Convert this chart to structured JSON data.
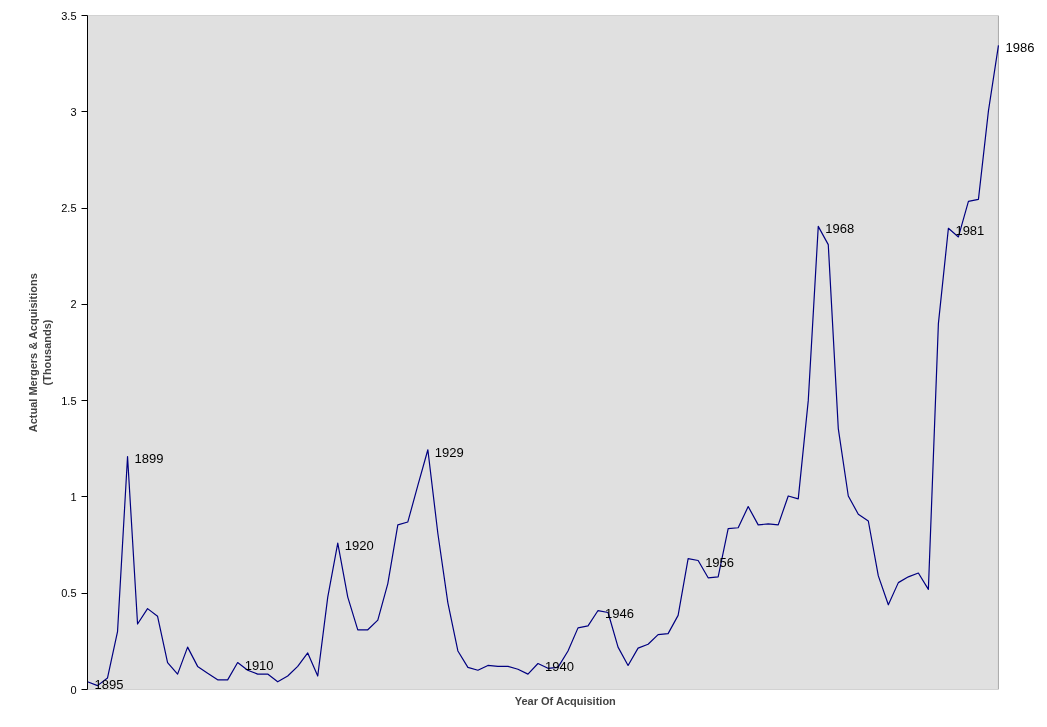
{
  "chart_data": {
    "type": "line",
    "xlabel": "Year Of Acquisition",
    "ylabel": "Actual Mergers & Acquisitions\n(Thousands)",
    "categories": [
      null,
      null,
      null,
      null,
      null,
      null,
      null,
      null,
      null,
      null,
      null,
      null,
      null,
      null,
      null,
      null,
      null,
      null,
      null,
      null,
      null,
      null,
      null,
      null,
      null,
      null,
      null,
      null,
      null,
      null,
      null,
      null,
      null,
      null,
      null,
      null,
      null,
      null,
      null,
      null,
      null,
      null,
      null,
      null,
      null,
      null,
      null,
      null,
      null,
      null,
      null,
      null,
      null,
      null,
      null,
      null,
      null,
      null,
      null,
      null,
      null,
      null,
      null,
      null,
      null,
      null,
      null,
      null,
      null,
      null,
      null,
      null,
      null,
      null,
      null,
      null,
      null,
      null,
      null,
      null,
      null,
      null,
      null,
      null,
      null,
      null,
      null,
      null,
      null,
      null,
      null,
      null
    ],
    "series": [
      {
        "color": "#000080",
        "values": [
          0.04,
          0.02,
          0.06,
          0.3,
          1.21,
          0.34,
          0.42,
          0.38,
          0.14,
          0.08,
          0.22,
          0.12,
          0.085,
          0.05,
          0.05,
          0.14,
          0.1,
          0.08,
          0.08,
          0.04,
          0.07,
          0.12,
          0.19,
          0.07,
          0.48,
          0.76,
          0.48,
          0.31,
          0.31,
          0.36,
          0.55,
          0.855,
          0.87,
          1.06,
          1.245,
          0.81,
          0.45,
          0.2,
          0.115,
          0.1,
          0.125,
          0.12,
          0.12,
          0.105,
          0.08,
          0.135,
          0.11,
          0.115,
          0.2,
          0.32,
          0.33,
          0.41,
          0.4,
          0.22,
          0.125,
          0.215,
          0.235,
          0.285,
          0.29,
          0.385,
          0.68,
          0.67,
          0.58,
          0.585,
          0.835,
          0.84,
          0.95,
          0.855,
          0.86,
          0.855,
          1.005,
          0.99,
          1.5,
          2.405,
          2.31,
          1.355,
          1.005,
          0.91,
          0.875,
          0.59,
          0.44,
          0.555,
          0.585,
          0.605,
          0.52,
          1.9,
          2.395,
          2.35,
          2.535,
          2.545,
          3.005,
          3.345
        ]
      }
    ],
    "ylim": [
      0,
      3.5
    ],
    "yticks": [
      0,
      0.5,
      1,
      1.5,
      2,
      2.5,
      3,
      3.5
    ],
    "tick_labels": "y",
    "grid": false,
    "value_labels": [
      "1895",
      null,
      null,
      null,
      "1899",
      null,
      null,
      null,
      null,
      null,
      null,
      null,
      null,
      null,
      null,
      "1910",
      null,
      null,
      null,
      null,
      null,
      null,
      null,
      null,
      null,
      "1920",
      null,
      null,
      null,
      null,
      null,
      null,
      null,
      null,
      "1929",
      null,
      null,
      null,
      null,
      null,
      null,
      null,
      null,
      null,
      null,
      "1940",
      null,
      null,
      null,
      null,
      null,
      "1946",
      null,
      null,
      null,
      null,
      null,
      null,
      null,
      null,
      null,
      "1956",
      null,
      null,
      null,
      null,
      null,
      null,
      null,
      null,
      null,
      null,
      null,
      "1968",
      null,
      null,
      null,
      null,
      null,
      null,
      null,
      null,
      null,
      null,
      null,
      null,
      "1981",
      null,
      null,
      null,
      null,
      "1986"
    ]
  }
}
